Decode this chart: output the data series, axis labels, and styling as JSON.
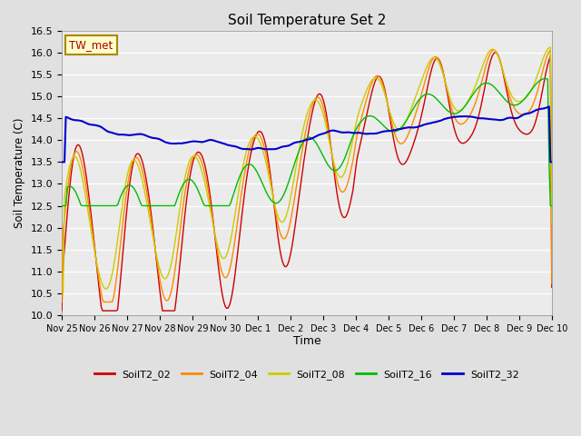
{
  "title": "Soil Temperature Set 2",
  "xlabel": "Time",
  "ylabel": "Soil Temperature (C)",
  "ylim": [
    10.0,
    16.5
  ],
  "yticks": [
    10.0,
    10.5,
    11.0,
    11.5,
    12.0,
    12.5,
    13.0,
    13.5,
    14.0,
    14.5,
    15.0,
    15.5,
    16.0,
    16.5
  ],
  "bg_color": "#e0e0e0",
  "plot_bg_color": "#ebebeb",
  "series_colors": {
    "SoilT2_02": "#cc0000",
    "SoilT2_04": "#ff8800",
    "SoilT2_08": "#cccc00",
    "SoilT2_16": "#00bb00",
    "SoilT2_32": "#0000cc"
  },
  "annotation_label": "TW_met",
  "annotation_color": "#aa0000",
  "annotation_bg": "#ffffcc",
  "annotation_border": "#aa8800",
  "tick_labels": [
    "Nov 25",
    "Nov 26",
    "Nov 27",
    "Nov 28",
    "Nov 29",
    "Nov 30",
    "Dec 1",
    "Dec 2",
    "Dec 3",
    "Dec 4",
    "Dec 5",
    "Dec 6",
    "Dec 7",
    "Dec 8",
    "Dec 9",
    "Dec 10"
  ],
  "figsize": [
    6.4,
    4.8
  ],
  "dpi": 100
}
